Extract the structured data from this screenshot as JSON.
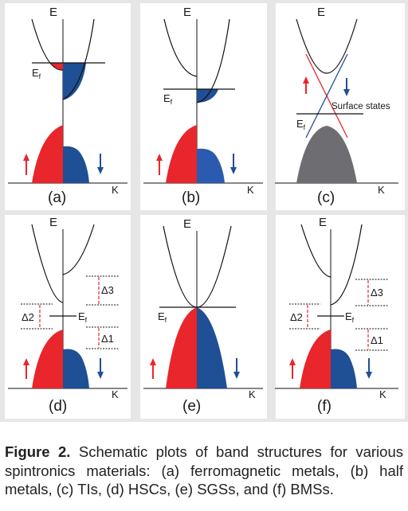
{
  "figure": {
    "panels": [
      {
        "id": "a",
        "label": "(a)"
      },
      {
        "id": "b",
        "label": "(b)"
      },
      {
        "id": "c",
        "label": "(c)"
      },
      {
        "id": "d",
        "label": "(d)"
      },
      {
        "id": "e",
        "label": "(e)"
      },
      {
        "id": "f",
        "label": "(f)"
      }
    ],
    "axis_energy": "E",
    "axis_momentum": "K",
    "fermi_main": "E",
    "fermi_sub": "f",
    "surface_states": "Surface states",
    "delta1": "Δ1",
    "delta2": "Δ2",
    "delta3": "Δ3",
    "colors": {
      "spin_up": "#e8262b",
      "spin_down": "#1f4f94",
      "spin_down_light": "#2a5bb0",
      "surface_bulk": "#6d6d72",
      "frame": "#e6e6e6"
    }
  },
  "caption": {
    "label": "Figure 2.",
    "text": " Schematic plots of band structures for various spintronics materials: (a) ferromagnetic metals, (b) half metals, (c) TIs, (d) HSCs, (e) SGSs, and (f) BMSs."
  }
}
